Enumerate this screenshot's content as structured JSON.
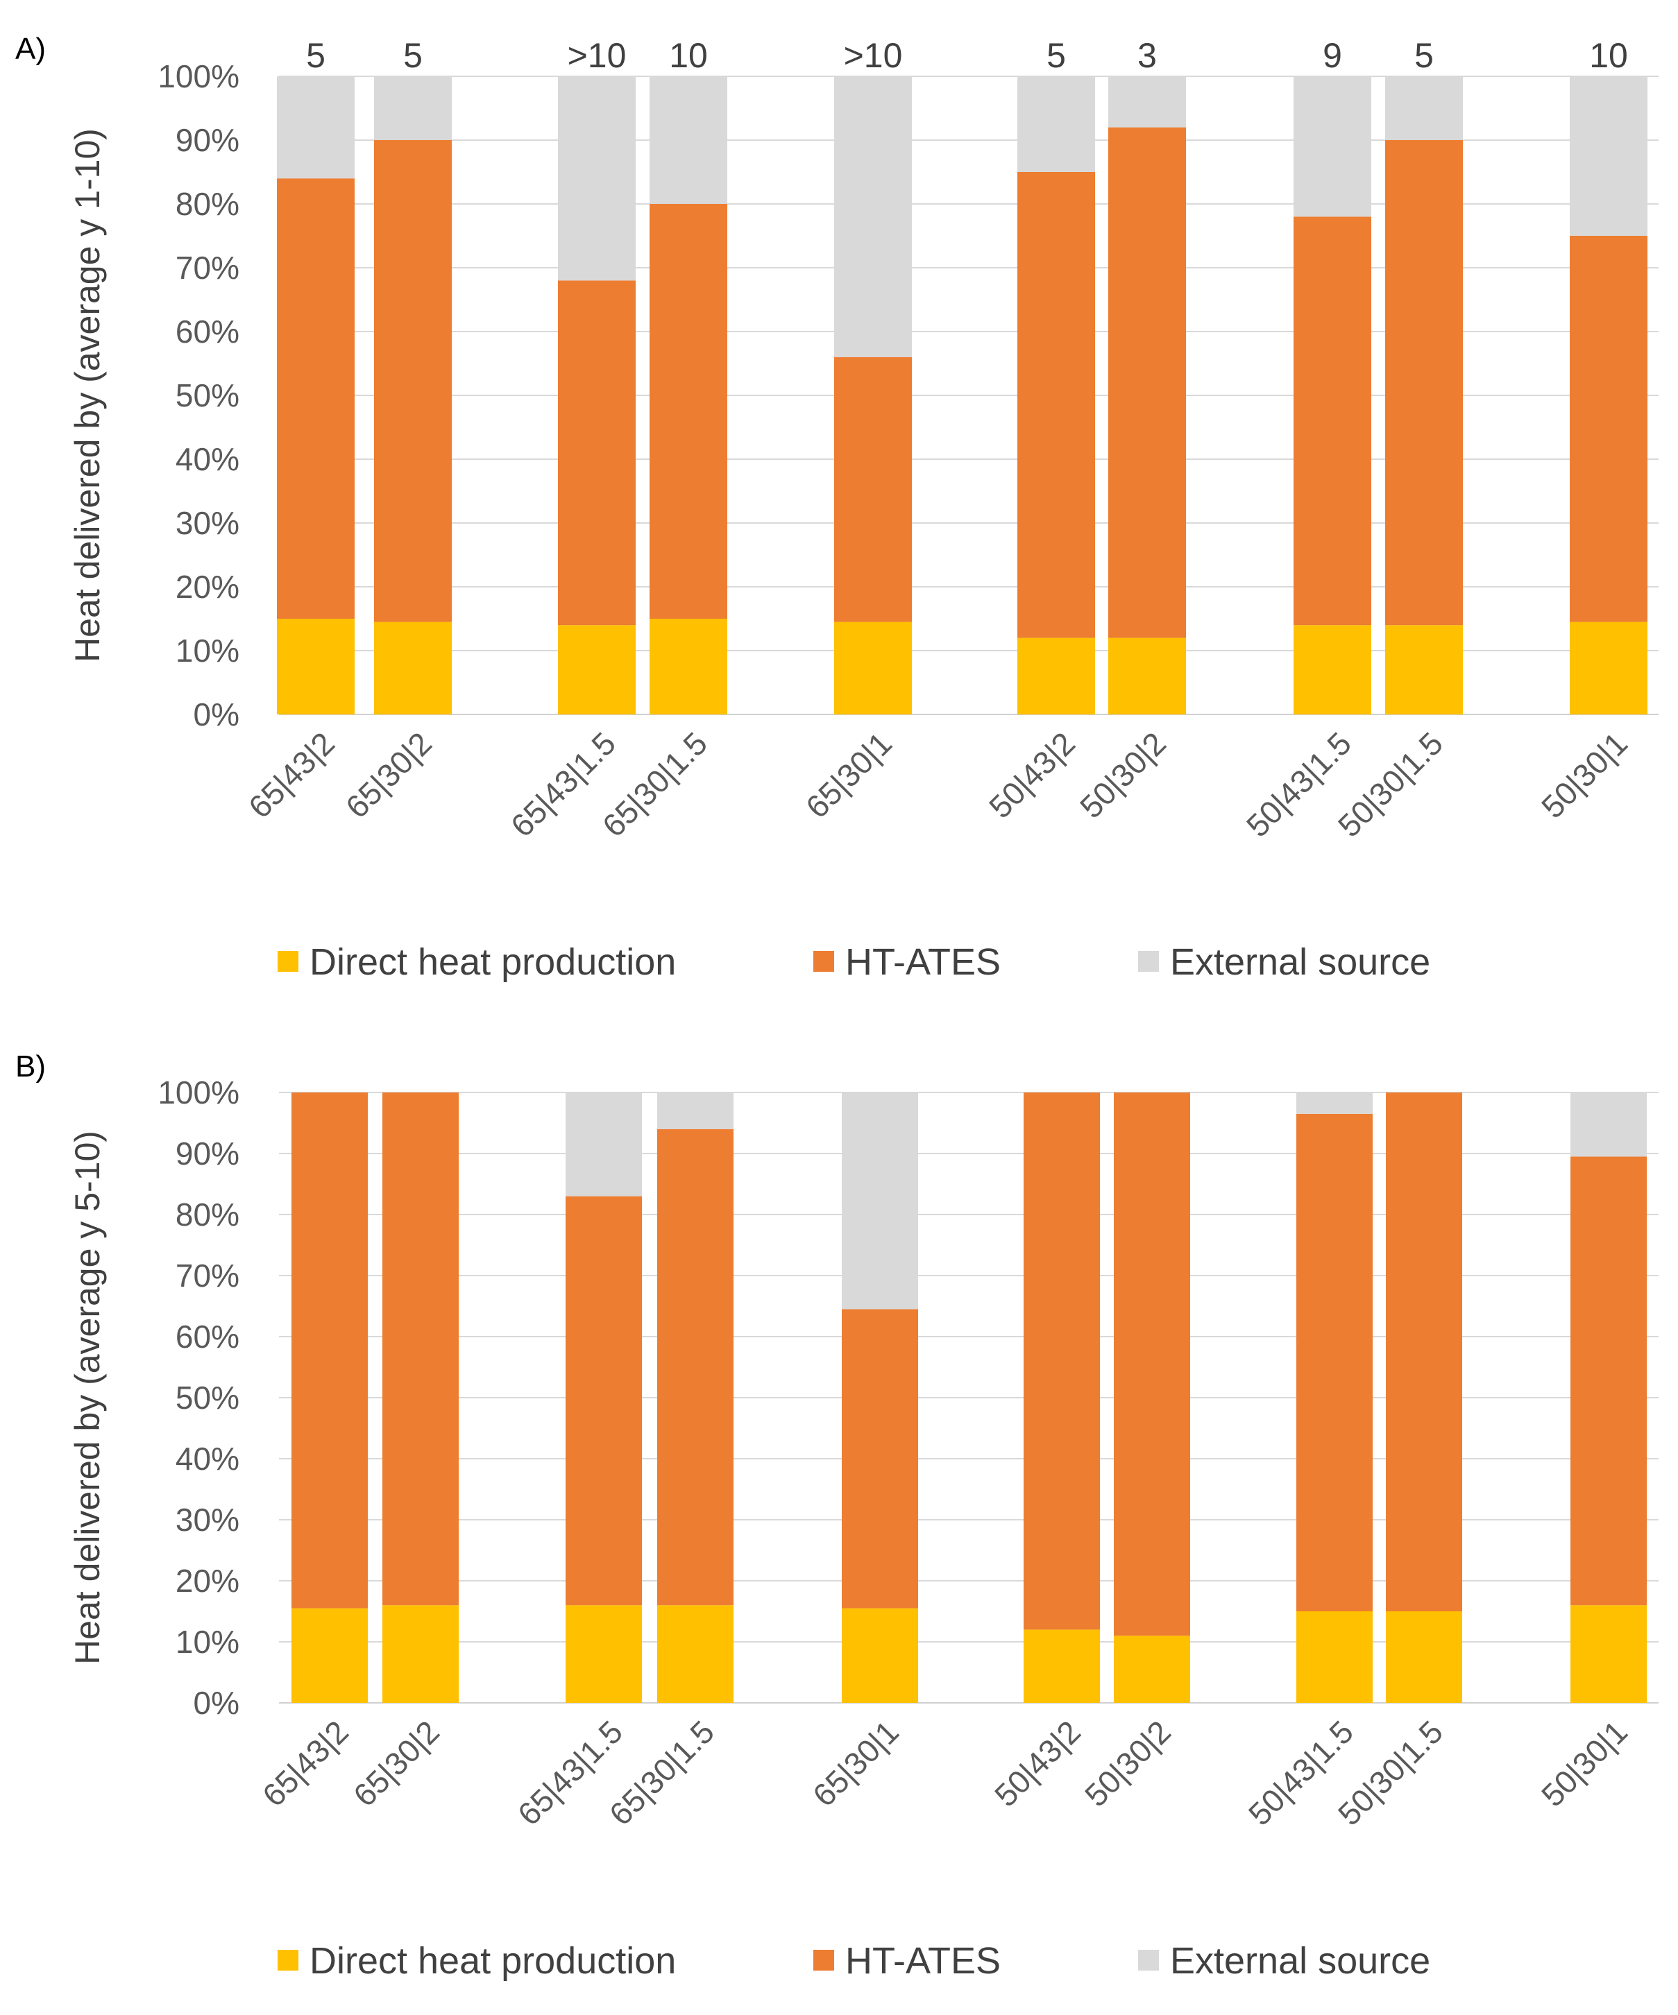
{
  "chart_data": [
    {
      "panel": "A)",
      "type": "bar",
      "stacked": true,
      "ylabel": "Heat delivered by (average y 1-10)",
      "xlabel": "",
      "ylim": [
        0,
        100
      ],
      "yticks": [
        "0%",
        "10%",
        "20%",
        "30%",
        "40%",
        "50%",
        "60%",
        "70%",
        "80%",
        "90%",
        "100%"
      ],
      "categories": [
        "65|43|2",
        "65|30|2",
        "65|43|1.5",
        "65|30|1.5",
        "65|30|1",
        "50|43|2",
        "50|30|2",
        "50|43|1.5",
        "50|30|1.5",
        "50|30|1"
      ],
      "top_labels": [
        "5",
        "5",
        ">10",
        "10",
        ">10",
        "5",
        "3",
        "9",
        "5",
        "10"
      ],
      "series": [
        {
          "name": "Direct heat production",
          "color": "#FFC000",
          "values": [
            15,
            14.5,
            14,
            15,
            14.5,
            12,
            12,
            14,
            14,
            14.5
          ]
        },
        {
          "name": "HT-ATES",
          "color": "#ED7D31",
          "values": [
            69,
            75.5,
            54,
            65,
            41.5,
            73,
            80,
            64,
            76,
            60.5
          ]
        },
        {
          "name": "External source",
          "color": "#D9D9D9",
          "values": [
            16,
            10,
            32,
            20,
            44,
            15,
            8,
            22,
            10,
            25
          ]
        }
      ],
      "legend_position": "bottom",
      "grid": true
    },
    {
      "panel": "B)",
      "type": "bar",
      "stacked": true,
      "ylabel": "Heat delivered by (average y 5-10)",
      "xlabel": "",
      "ylim": [
        0,
        100
      ],
      "yticks": [
        "0%",
        "10%",
        "20%",
        "30%",
        "40%",
        "50%",
        "60%",
        "70%",
        "80%",
        "90%",
        "100%"
      ],
      "categories": [
        "65|43|2",
        "65|30|2",
        "65|43|1.5",
        "65|30|1.5",
        "65|30|1",
        "50|43|2",
        "50|30|2",
        "50|43|1.5",
        "50|30|1.5",
        "50|30|1"
      ],
      "series": [
        {
          "name": "Direct heat production",
          "color": "#FFC000",
          "values": [
            15.5,
            16,
            16,
            16,
            15.5,
            12,
            11,
            15,
            15,
            16
          ]
        },
        {
          "name": "HT-ATES",
          "color": "#ED7D31",
          "values": [
            84.5,
            84,
            67,
            78,
            49,
            88,
            89,
            81.5,
            85,
            73.5
          ]
        },
        {
          "name": "External source",
          "color": "#D9D9D9",
          "values": [
            0,
            0,
            17,
            6,
            35.5,
            0,
            0,
            3.5,
            0,
            10.5
          ]
        }
      ],
      "legend_position": "bottom",
      "grid": true
    }
  ]
}
